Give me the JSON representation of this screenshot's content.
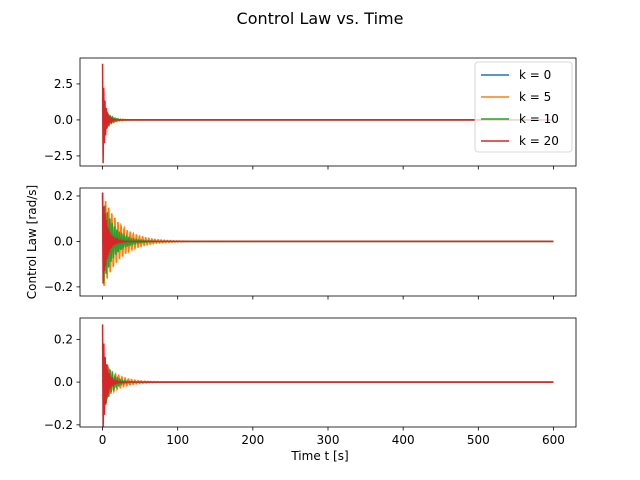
{
  "chart_data": {
    "type": "line",
    "title": "Control Law vs. Time",
    "ylabel": "Control Law [rad/s]",
    "xlabel": "Time t [s]",
    "legend": {
      "placement": "top-right",
      "entries": [
        "k = 0",
        "k = 5",
        "k = 10",
        "k = 20"
      ]
    },
    "x_axis": {
      "xlim": [
        -30,
        630
      ],
      "ticks": [
        0,
        100,
        200,
        300,
        400,
        500,
        600
      ],
      "tick_labels": [
        "0",
        "100",
        "200",
        "300",
        "400",
        "500",
        "600"
      ],
      "shared": true
    },
    "grid": false,
    "series_colors": [
      "#1f77b4",
      "#ff7f0e",
      "#2ca02c",
      "#d62728"
    ],
    "panels": [
      {
        "ylim": [
          -3.2,
          4.3
        ],
        "yticks": [
          -2.5,
          0.0,
          2.5
        ],
        "ytick_labels": [
          "−2.5",
          "0.0",
          "2.5"
        ],
        "series": [
          {
            "name": "k = 0",
            "x_range": [
              0,
              600
            ],
            "amplitude": 0.02,
            "decay": 0.1,
            "period": 2.0
          },
          {
            "name": "k = 5",
            "x_range": [
              0,
              600
            ],
            "amplitude": 0.85,
            "decay": 0.11,
            "period": 3.4
          },
          {
            "name": "k = 10",
            "x_range": [
              0,
              600
            ],
            "amplitude": 1.6,
            "decay": 0.17,
            "period": 2.6
          },
          {
            "name": "k = 20",
            "x_range": [
              0,
              600
            ],
            "amplitude": 3.9,
            "decay": 0.32,
            "period": 1.6
          }
        ]
      },
      {
        "ylim": [
          -0.24,
          0.235
        ],
        "yticks": [
          -0.2,
          0.0,
          0.2
        ],
        "ytick_labels": [
          "−0.2",
          "0.0",
          "0.2"
        ],
        "series": [
          {
            "name": "k = 0",
            "x_range": [
              0,
              600
            ],
            "amplitude": 0.01,
            "decay": 0.1,
            "period": 2.0
          },
          {
            "name": "k = 5",
            "x_range": [
              0,
              600
            ],
            "amplitude": 0.215,
            "decay": 0.045,
            "period": 4.1
          },
          {
            "name": "k = 10",
            "x_range": [
              0,
              600
            ],
            "amplitude": 0.2,
            "decay": 0.07,
            "period": 3.2
          },
          {
            "name": "k = 20",
            "x_range": [
              0,
              600
            ],
            "amplitude": 0.215,
            "decay": 0.17,
            "period": 1.6
          }
        ]
      },
      {
        "ylim": [
          -0.21,
          0.3
        ],
        "yticks": [
          -0.2,
          0.0,
          0.2
        ],
        "ytick_labels": [
          "−0.2",
          "0.0",
          "0.2"
        ],
        "series": [
          {
            "name": "k = 0",
            "x_range": [
              0,
              600
            ],
            "amplitude": 0.01,
            "decay": 0.1,
            "period": 2.0
          },
          {
            "name": "k = 5",
            "x_range": [
              0,
              600
            ],
            "amplitude": 0.1,
            "decay": 0.055,
            "period": 4.3
          },
          {
            "name": "k = 10",
            "x_range": [
              0,
              600
            ],
            "amplitude": 0.17,
            "decay": 0.11,
            "period": 3.3
          },
          {
            "name": "k = 20",
            "x_range": [
              0,
              600
            ],
            "amplitude": 0.27,
            "decay": 0.22,
            "period": 1.7
          }
        ]
      }
    ]
  }
}
